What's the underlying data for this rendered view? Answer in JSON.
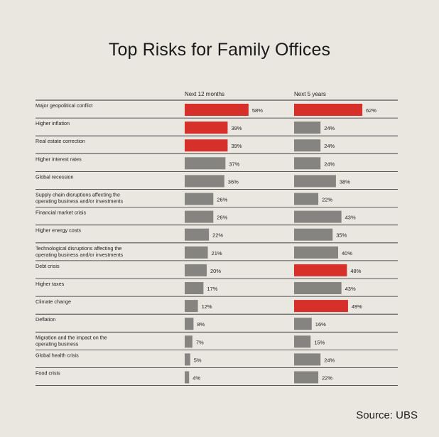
{
  "title": "Top Risks for Family Offices",
  "source": "Source: UBS",
  "colors": {
    "highlight": "#d72f2a",
    "normal": "#858481",
    "background": "#eae7e1",
    "rule": "#2c2c2c"
  },
  "chart_data": {
    "type": "bar",
    "title": "Top Risks for Family Offices",
    "categories": [
      [
        "Major geopolitical conflict"
      ],
      [
        "Higher inflation"
      ],
      [
        "Real estate correction"
      ],
      [
        "Higher interest rates"
      ],
      [
        "Global recession"
      ],
      [
        "Supply chain disruptions affecting the",
        "operating business and/or investments"
      ],
      [
        "Financial market crisis"
      ],
      [
        "Higher energy costs"
      ],
      [
        "Technological disruptions affecting the",
        "operating business and/or investments"
      ],
      [
        "Debt crisis"
      ],
      [
        "Higher taxes"
      ],
      [
        "Climate change"
      ],
      [
        "Deflation"
      ],
      [
        "Migration and the impact on the",
        "operating business"
      ],
      [
        "Global health crisis"
      ],
      [
        "Food crisis"
      ]
    ],
    "series": [
      {
        "name": "Next 12 months",
        "values": [
          58,
          39,
          39,
          37,
          36,
          26,
          26,
          22,
          21,
          20,
          17,
          12,
          8,
          7,
          5,
          4
        ],
        "highlighted": [
          true,
          true,
          true,
          false,
          false,
          false,
          false,
          false,
          false,
          false,
          false,
          false,
          false,
          false,
          false,
          false
        ]
      },
      {
        "name": "Next 5 years",
        "values": [
          62,
          24,
          24,
          24,
          38,
          22,
          43,
          35,
          40,
          48,
          43,
          49,
          16,
          15,
          24,
          22
        ],
        "highlighted": [
          true,
          false,
          false,
          false,
          false,
          false,
          false,
          false,
          false,
          true,
          false,
          true,
          false,
          false,
          false,
          false
        ]
      }
    ],
    "value_suffix": "%",
    "grid": false,
    "legend": "column headers"
  }
}
